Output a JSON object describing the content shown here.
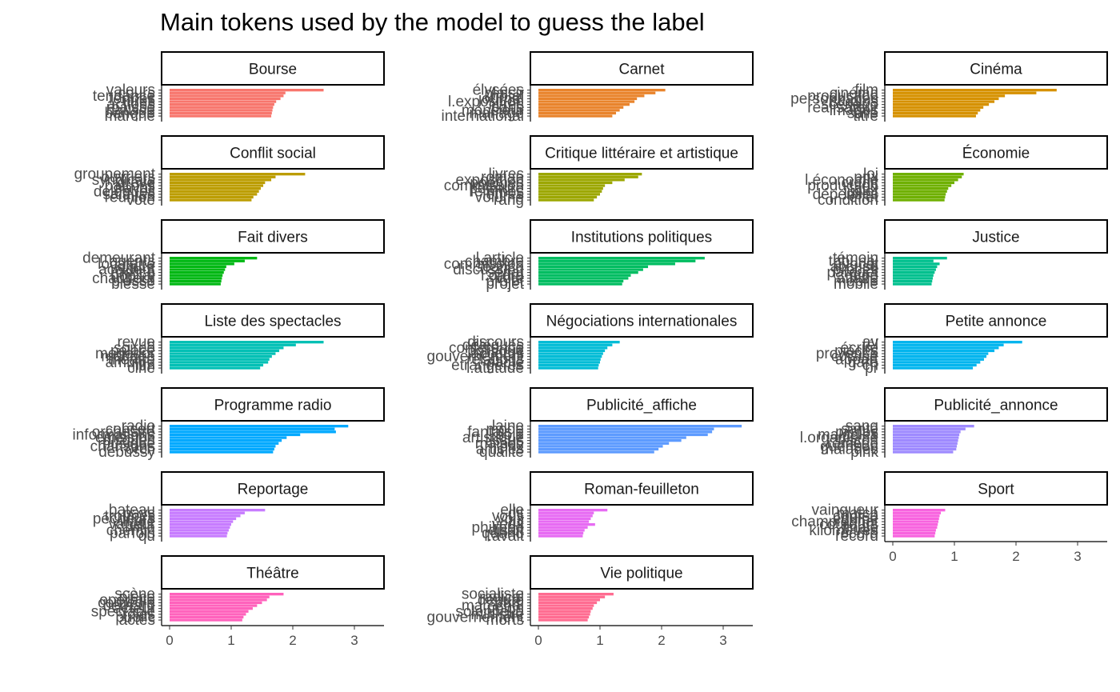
{
  "chart_data": {
    "type": "bar",
    "orientation": "horizontal",
    "title": "Main tokens used by the model to guess the label",
    "xlim": [
      0,
      3.4
    ],
    "x_ticks": [
      0,
      1,
      2,
      3
    ],
    "x_tick_labels": [
      "0",
      "1",
      "2",
      "3"
    ],
    "grid": false,
    "facets": [
      {
        "label": "Bourse",
        "color": "#F8766D",
        "tokens": [
          "valeurs",
          "cours",
          "tendance",
          "fermes",
          "titres",
          "actions",
          "baisse",
          "hausse",
          "banque",
          "marché"
        ],
        "values": [
          2.5,
          1.88,
          1.85,
          1.8,
          1.73,
          1.7,
          1.68,
          1.67,
          1.66,
          1.65
        ]
      },
      {
        "label": "Carnet",
        "color": "#E9842C",
        "tokens": [
          "élysées",
          "plaisir",
          "hôtel",
          "journal",
          "l.exposition",
          "livres",
          "paris",
          "monsieur",
          "mariage",
          "international"
        ],
        "values": [
          2.06,
          1.9,
          1.72,
          1.6,
          1.56,
          1.48,
          1.38,
          1.32,
          1.26,
          1.2
        ]
      },
      {
        "label": "Cinéma",
        "color": "#D69100",
        "tokens": [
          "film",
          "cinéma",
          "production",
          "personnages",
          "studios",
          "scénario",
          "réalisateur",
          "images",
          "salle",
          "titre"
        ],
        "values": [
          2.66,
          2.33,
          1.82,
          1.72,
          1.65,
          1.56,
          1.47,
          1.42,
          1.38,
          1.35
        ]
      },
      {
        "label": "Conflit social",
        "color": "#BC9D00",
        "tokens": [
          "groupement",
          "ouvriers",
          "syndicats",
          "grève",
          "patrons",
          "travail",
          "délégués",
          "salaires",
          "réunion",
          "vote"
        ],
        "values": [
          2.2,
          1.72,
          1.65,
          1.55,
          1.52,
          1.48,
          1.45,
          1.42,
          1.36,
          1.33
        ]
      },
      {
        "label": "Critique littéraire et artistique",
        "color": "#9CA700",
        "tokens": [
          "livres",
          "roman",
          "exposition",
          "poèmes",
          "commission",
          "peinture",
          "femmes",
          "lettres",
          "volume",
          "rang"
        ],
        "values": [
          1.68,
          1.62,
          1.4,
          1.2,
          1.08,
          1.05,
          1.03,
          1.0,
          0.95,
          0.9
        ]
      },
      {
        "label": "Économie",
        "color": "#6FB000",
        "tokens": [
          "loi",
          "prix",
          "l.économie",
          "crédit",
          "production",
          "taux",
          "juillet",
          "dépenses",
          "effet",
          "condition"
        ],
        "values": [
          1.15,
          1.12,
          1.06,
          1.0,
          0.95,
          0.9,
          0.88,
          0.86,
          0.85,
          0.84
        ]
      },
      {
        "label": "Fait divers",
        "color": "#00B813",
        "tokens": [
          "demeurant",
          "agents",
          "locataire",
          "voiture",
          "accident",
          "police",
          "hôpital",
          "chauffeur",
          "blessé",
          "blessé"
        ],
        "values": [
          1.42,
          1.22,
          1.05,
          0.92,
          0.9,
          0.88,
          0.86,
          0.85,
          0.84,
          0.83
        ]
      },
      {
        "label": "Institutions politiques",
        "color": "#00BD61",
        "tokens": [
          "l.article",
          "chambre",
          "commission",
          "séance",
          "discussion",
          "sénat",
          "l.ordre",
          "vote",
          "projet",
          "projet"
        ],
        "values": [
          2.7,
          2.55,
          2.22,
          1.78,
          1.7,
          1.62,
          1.5,
          1.46,
          1.38,
          1.36
        ]
      },
      {
        "label": "Justice",
        "color": "#00C08E",
        "tokens": [
          "témoin",
          "tribunal",
          "avocat",
          "accusé",
          "procès",
          "parquet",
          "juge",
          "affaire",
          "mobile",
          "mobile"
        ],
        "values": [
          0.88,
          0.66,
          0.76,
          0.72,
          0.7,
          0.68,
          0.66,
          0.65,
          0.64,
          0.63
        ]
      },
      {
        "label": "Liste des spectacles",
        "color": "#00C0B5",
        "tokens": [
          "revue",
          "h",
          "soirée",
          "palace",
          "mogador",
          "matinée",
          "théâtre",
          "ambigu",
          "film",
          "ciné"
        ],
        "values": [
          2.5,
          2.05,
          1.85,
          1.78,
          1.72,
          1.66,
          1.62,
          1.6,
          1.52,
          1.47
        ]
      },
      {
        "label": "Négociations internationales",
        "color": "#00BCD6",
        "tokens": [
          "discours",
          "délégués",
          "conférence",
          "politique",
          "accords",
          "gouvernement",
          "relations",
          "pacte",
          "étrangères",
          "l.attitude"
        ],
        "values": [
          1.32,
          1.2,
          1.12,
          1.08,
          1.05,
          1.03,
          1.01,
          1.0,
          0.98,
          0.97
        ]
      },
      {
        "label": "Petite annonce",
        "color": "#00B5EE",
        "tokens": [
          "av",
          "tél",
          "écrire",
          "pièces",
          "provence",
          "cuisine",
          "appart",
          "gare",
          "ch",
          "pr"
        ],
        "values": [
          2.1,
          1.8,
          1.72,
          1.65,
          1.55,
          1.52,
          1.48,
          1.42,
          1.36,
          1.3
        ]
      },
      {
        "label": "Programme radio",
        "color": "#00A9FF",
        "tokens": [
          "radio",
          "concert",
          "orchestre",
          "informations",
          "émission",
          "disques",
          "musique",
          "chansons",
          "orch",
          "debussy"
        ],
        "values": [
          2.9,
          2.68,
          2.7,
          2.12,
          1.9,
          1.82,
          1.77,
          1.72,
          1.7,
          1.68
        ]
      },
      {
        "label": "Publicité_affiche",
        "color": "#5D9BFF",
        "tokens": [
          "laine",
          "mode",
          "fantaisie",
          "soie",
          "artistique",
          "tissus",
          "maison",
          "prix",
          "articles",
          "qualité"
        ],
        "values": [
          3.3,
          2.85,
          2.82,
          2.75,
          2.4,
          2.32,
          2.12,
          2.02,
          1.95,
          1.88
        ]
      },
      {
        "label": "Publicité_annonce",
        "color": "#9E8AFF",
        "tokens": [
          "sang",
          "santé",
          "pilules",
          "maladies",
          "l.organisme",
          "flacon",
          "remède",
          "guérison",
          "malades",
          "pink"
        ],
        "values": [
          1.32,
          1.18,
          1.1,
          1.08,
          1.07,
          1.06,
          1.05,
          1.04,
          1.03,
          0.98
        ]
      },
      {
        "label": "Reportage",
        "color": "#C77CFF",
        "tokens": [
          "bateau",
          "pays",
          "troupes",
          "pêcheurs",
          "village",
          "vapeur",
          "ville",
          "chemin",
          "parfois",
          "qu"
        ],
        "values": [
          1.55,
          1.22,
          1.15,
          1.08,
          1.03,
          1.0,
          0.98,
          0.96,
          0.94,
          0.93
        ]
      },
      {
        "label": "Roman-feuilleton",
        "color": "#E76BF3",
        "tokens": [
          "elle",
          "dit",
          "vous",
          "voix",
          "lui",
          "yeux",
          "philippe",
          "disait",
          "quand",
          "l.avait"
        ],
        "values": [
          1.12,
          0.9,
          0.88,
          0.85,
          0.82,
          0.92,
          0.8,
          0.75,
          0.73,
          0.72
        ]
      },
      {
        "label": "Sport",
        "color": "#F863DF",
        "tokens": [
          "vainqueur",
          "match",
          "course",
          "équipe",
          "championnat",
          "coureurs",
          "finale",
          "kilomètres",
          "record",
          "record"
        ],
        "values": [
          0.85,
          0.78,
          0.76,
          0.75,
          0.74,
          0.73,
          0.72,
          0.7,
          0.69,
          0.68
        ]
      },
      {
        "label": "Théâtre",
        "color": "#FF62BC",
        "tokens": [
          "scène",
          "pièce",
          "opérette",
          "comédie",
          "bernard",
          "acteur",
          "spectacle",
          "rôles",
          "public",
          "actes"
        ],
        "values": [
          1.85,
          1.62,
          1.58,
          1.5,
          1.42,
          1.35,
          1.28,
          1.24,
          1.2,
          1.18
        ]
      },
      {
        "label": "Vie politique",
        "color": "#FF6C91",
        "tokens": [
          "socialiste",
          "radical",
          "député",
          "parti",
          "maréchal",
          "l.union",
          "solennelle",
          "ministre",
          "gouvernement",
          "morts"
        ],
        "values": [
          1.22,
          1.08,
          1.0,
          0.95,
          0.9,
          0.88,
          0.85,
          0.84,
          0.82,
          0.8
        ]
      }
    ]
  }
}
